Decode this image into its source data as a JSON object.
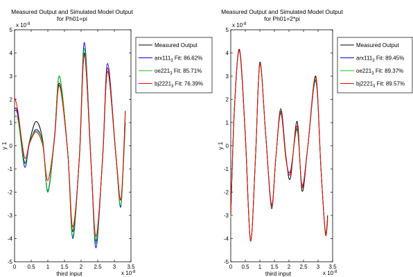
{
  "chart_data": [
    {
      "type": "line",
      "title": "Measured Output and Simulated Model Output",
      "subtitle": "for Ph01=pi",
      "xlabel": "third input",
      "ylabel": "y 1",
      "xlim": [
        0,
        3.5
      ],
      "ylim": [
        -5,
        5
      ],
      "x_multiplier": "x 10",
      "x_multiplier_exp": "-8",
      "y_multiplier": "x 10",
      "y_multiplier_exp": "-8",
      "x_ticks": [
        "0",
        "0.5",
        "1",
        "1.5",
        "2",
        "2.5",
        "3",
        "3.5"
      ],
      "y_ticks": [
        "5",
        "4",
        "3",
        "2",
        "1",
        "0",
        "-1",
        "-2",
        "-3",
        "-4",
        "-5"
      ],
      "legend_position": "top-right",
      "legend": [
        {
          "pre": "Measured Output",
          "sub": "",
          "post": "",
          "color": "#000000"
        },
        {
          "pre": "arx111",
          "sub": "3",
          "post": " Fit: 86.62%",
          "color": "#0000ff"
        },
        {
          "pre": "oe221",
          "sub": "3",
          "post": " Fit: 85.71%",
          "color": "#00cc00"
        },
        {
          "pre": "bj2221",
          "sub": "3",
          "post": " Fit: 76.39%",
          "color": "#ff0000"
        }
      ],
      "series": [
        {
          "name": "Measured Output",
          "color": "#000000",
          "x": [
            0,
            0.1,
            0.3,
            0.45,
            0.65,
            0.85,
            1.0,
            1.2,
            1.35,
            1.6,
            1.75,
            1.95,
            2.1,
            2.3,
            2.45,
            2.65,
            2.8,
            3.05,
            3.2,
            3.33
          ],
          "y": [
            1.6,
            1.4,
            -0.7,
            0.2,
            1.05,
            0.2,
            -2.0,
            0.3,
            2.7,
            -0.3,
            -3.7,
            -0.5,
            4.0,
            -0.8,
            -4.1,
            -0.5,
            3.2,
            -0.5,
            -2.3,
            1.0
          ]
        },
        {
          "name": "arx111 Fit: 86.62%",
          "color": "#0000ff",
          "x": [
            0,
            0.1,
            0.3,
            0.45,
            0.65,
            0.85,
            1.0,
            1.2,
            1.35,
            1.6,
            1.75,
            1.95,
            2.1,
            2.3,
            2.45,
            2.65,
            2.8,
            3.05,
            3.2,
            3.33
          ],
          "y": [
            1.5,
            1.3,
            -0.9,
            0.1,
            0.7,
            0.1,
            -1.95,
            0.4,
            3.0,
            -0.3,
            -4.0,
            -0.4,
            4.45,
            -0.7,
            -4.4,
            -0.4,
            3.55,
            -0.5,
            -2.6,
            1.5
          ]
        },
        {
          "name": "oe221 Fit: 85.71%",
          "color": "#00cc00",
          "x": [
            0,
            0.1,
            0.3,
            0.45,
            0.65,
            0.85,
            1.0,
            1.2,
            1.35,
            1.6,
            1.75,
            1.95,
            2.1,
            2.3,
            2.45,
            2.65,
            2.8,
            3.05,
            3.2,
            3.33
          ],
          "y": [
            1.2,
            1.15,
            -0.75,
            0.15,
            0.65,
            0.1,
            -2.0,
            0.35,
            3.0,
            -0.3,
            -3.9,
            -0.4,
            4.2,
            -0.7,
            -4.2,
            -0.4,
            3.35,
            -0.5,
            -2.55,
            1.3
          ]
        },
        {
          "name": "bj2221 Fit: 76.39%",
          "color": "#ff0000",
          "x": [
            0,
            0.1,
            0.3,
            0.45,
            0.65,
            0.85,
            1.0,
            1.2,
            1.35,
            1.6,
            1.75,
            1.95,
            2.1,
            2.3,
            2.45,
            2.65,
            2.8,
            3.05,
            3.2,
            3.33
          ],
          "y": [
            2.1,
            1.5,
            -0.5,
            0.1,
            0.6,
            0.0,
            -1.5,
            0.3,
            2.6,
            -0.3,
            -3.5,
            -0.5,
            3.9,
            -0.7,
            -3.9,
            -0.5,
            3.35,
            -0.4,
            -2.3,
            1.5
          ]
        }
      ]
    },
    {
      "type": "line",
      "title": "Measured Output and Simulated Model Output",
      "subtitle": "for Ph01=2*pi",
      "xlabel": "third input",
      "ylabel": "y 1",
      "xlim": [
        0,
        3.5
      ],
      "ylim": [
        -5,
        5
      ],
      "x_multiplier": "x 10",
      "x_multiplier_exp": "-8",
      "y_multiplier": "x 10",
      "y_multiplier_exp": "-8",
      "x_ticks": [
        "0",
        "0.5",
        "1",
        "1.5",
        "2",
        "2.5",
        "3",
        "3.5"
      ],
      "y_ticks": [
        "5",
        "4",
        "3",
        "2",
        "1",
        "0",
        "-1",
        "-2",
        "-3",
        "-4",
        "-5"
      ],
      "legend_position": "top-right",
      "legend": [
        {
          "pre": "Measured Output",
          "sub": "",
          "post": "",
          "color": "#000000"
        },
        {
          "pre": "arx111",
          "sub": "3",
          "post": " Fit: 89.45%",
          "color": "#0000ff"
        },
        {
          "pre": "oe221",
          "sub": "3",
          "post": " Fit: 89.37%",
          "color": "#00cc00"
        },
        {
          "pre": "bj2221",
          "sub": "3",
          "post": " Fit: 89.57%",
          "color": "#ff0000"
        }
      ],
      "series": [
        {
          "name": "Measured Output",
          "color": "#000000",
          "x": [
            0,
            0.12,
            0.3,
            0.5,
            0.68,
            0.85,
            1.0,
            1.2,
            1.4,
            1.55,
            1.72,
            1.9,
            2.05,
            2.28,
            2.45,
            2.65,
            2.92,
            3.1,
            3.25,
            3.33
          ],
          "y": [
            -3.0,
            1.5,
            4.15,
            0.5,
            -4.1,
            -0.5,
            3.6,
            0.5,
            -2.55,
            -0.5,
            1.6,
            -0.5,
            -1.4,
            1.05,
            -1.95,
            0.0,
            3.0,
            -1.0,
            -3.7,
            -3.0
          ]
        },
        {
          "name": "arx111 Fit: 89.45%",
          "color": "#0000ff",
          "x": [
            0,
            0.12,
            0.3,
            0.5,
            0.68,
            0.85,
            1.0,
            1.2,
            1.4,
            1.55,
            1.72,
            1.9,
            2.05,
            2.28,
            2.45,
            2.65,
            2.92,
            3.1,
            3.25,
            3.33
          ],
          "y": [
            -3.1,
            1.4,
            4.1,
            0.4,
            -4.1,
            -0.5,
            3.55,
            0.5,
            -2.7,
            -0.5,
            1.4,
            -0.6,
            -1.1,
            0.7,
            -1.7,
            0.0,
            2.8,
            -1.0,
            -3.75,
            -3.2
          ]
        },
        {
          "name": "oe221 Fit: 89.37%",
          "color": "#00cc00",
          "x": [
            0,
            0.12,
            0.3,
            0.5,
            0.68,
            0.85,
            1.0,
            1.2,
            1.4,
            1.55,
            1.72,
            1.9,
            2.05,
            2.28,
            2.45,
            2.65,
            2.92,
            3.1,
            3.25,
            3.33
          ],
          "y": [
            -3.1,
            1.4,
            4.1,
            0.4,
            -4.1,
            -0.5,
            3.5,
            0.5,
            -2.65,
            -0.5,
            1.45,
            -0.6,
            -1.2,
            0.75,
            -1.75,
            0.0,
            2.85,
            -1.0,
            -3.7,
            -3.2
          ]
        },
        {
          "name": "bj2221 Fit: 89.57%",
          "color": "#ff0000",
          "x": [
            0,
            0.12,
            0.3,
            0.5,
            0.68,
            0.85,
            1.0,
            1.2,
            1.4,
            1.55,
            1.72,
            1.9,
            2.05,
            2.28,
            2.45,
            2.65,
            2.92,
            3.1,
            3.25,
            3.33
          ],
          "y": [
            -3.0,
            1.45,
            4.1,
            0.45,
            -4.1,
            -0.5,
            3.55,
            0.5,
            -2.6,
            -0.5,
            1.5,
            -0.6,
            -1.2,
            0.85,
            -1.8,
            0.0,
            2.95,
            -1.0,
            -3.8,
            -3.1
          ]
        }
      ]
    }
  ]
}
